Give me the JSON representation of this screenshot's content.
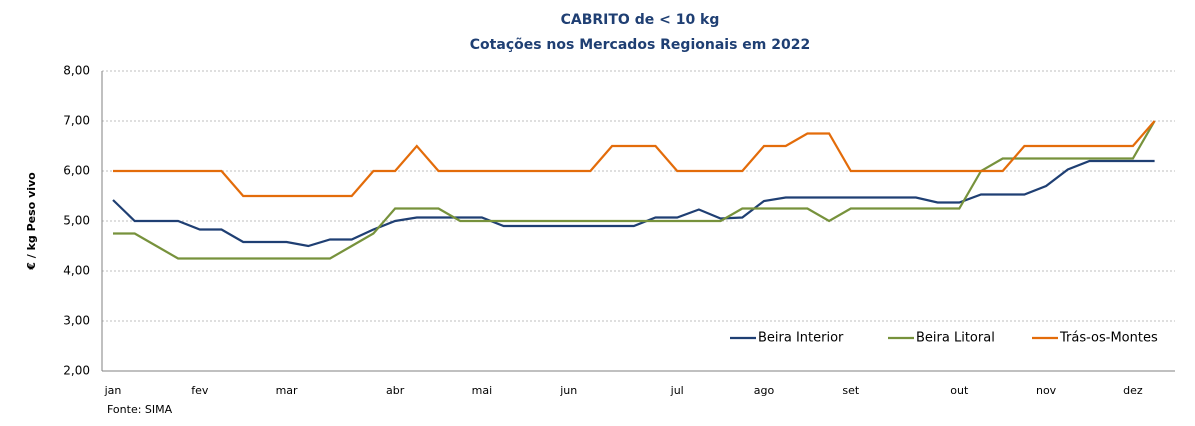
{
  "chart_data": {
    "type": "line",
    "title": "CABRITO de < 10 kg",
    "subtitle": "Cotações nos Mercados Regionais em 2022",
    "y_label": "€ / kg Peso vivo",
    "source": "Fonte: SIMA",
    "categories": [
      "jan",
      null,
      null,
      null,
      "fev",
      null,
      null,
      null,
      "mar",
      null,
      null,
      null,
      null,
      "abr",
      null,
      null,
      null,
      "mai",
      null,
      null,
      null,
      "jun",
      null,
      null,
      null,
      null,
      "jul",
      null,
      null,
      null,
      "ago",
      null,
      null,
      null,
      "set",
      null,
      null,
      null,
      null,
      "out",
      null,
      null,
      null,
      "nov",
      null,
      null,
      null,
      "dez",
      null
    ],
    "series": [
      {
        "name": "Beira Interior",
        "color": "#1f3f73",
        "values": [
          5.42,
          5.0,
          5.0,
          5.0,
          4.83,
          4.83,
          4.58,
          4.58,
          4.58,
          4.5,
          4.63,
          4.63,
          4.83,
          5.0,
          5.07,
          5.07,
          5.07,
          5.07,
          4.9,
          4.9,
          4.9,
          4.9,
          4.9,
          4.9,
          4.9,
          5.07,
          5.07,
          5.23,
          5.05,
          5.07,
          5.4,
          5.47,
          5.47,
          5.47,
          5.47,
          5.47,
          5.47,
          5.47,
          5.37,
          5.37,
          5.53,
          5.53,
          5.53,
          5.7,
          6.03,
          6.2,
          6.2,
          6.2,
          6.2
        ]
      },
      {
        "name": "Beira Litoral",
        "color": "#77923c",
        "values": [
          4.75,
          4.75,
          4.5,
          4.25,
          4.25,
          4.25,
          4.25,
          4.25,
          4.25,
          4.25,
          4.25,
          4.5,
          4.75,
          5.25,
          5.25,
          5.25,
          5.0,
          5.0,
          5.0,
          5.0,
          5.0,
          5.0,
          5.0,
          5.0,
          5.0,
          5.0,
          5.0,
          5.0,
          5.0,
          5.25,
          5.25,
          5.25,
          5.25,
          5.0,
          5.25,
          5.25,
          5.25,
          5.25,
          5.25,
          5.25,
          6.0,
          6.25,
          6.25,
          6.25,
          6.25,
          6.25,
          6.25,
          6.25,
          7.0
        ]
      },
      {
        "name": "Trás-os-Montes",
        "color": "#e36c0a",
        "values": [
          6.0,
          6.0,
          6.0,
          6.0,
          6.0,
          6.0,
          5.5,
          5.5,
          5.5,
          5.5,
          5.5,
          5.5,
          6.0,
          6.0,
          6.5,
          6.0,
          6.0,
          6.0,
          6.0,
          6.0,
          6.0,
          6.0,
          6.0,
          6.5,
          6.5,
          6.5,
          6.0,
          6.0,
          6.0,
          6.0,
          6.5,
          6.5,
          6.75,
          6.75,
          6.0,
          6.0,
          6.0,
          6.0,
          6.0,
          6.0,
          6.0,
          6.0,
          6.5,
          6.5,
          6.5,
          6.5,
          6.5,
          6.5,
          7.0
        ]
      }
    ],
    "ylim": [
      2,
      8
    ],
    "yticks": [
      {
        "value": 2,
        "label": "2,00"
      },
      {
        "value": 3,
        "label": "3,00"
      },
      {
        "value": 4,
        "label": "4,00"
      },
      {
        "value": 5,
        "label": "5,00"
      },
      {
        "value": 6,
        "label": "6,00"
      },
      {
        "value": 7,
        "label": "7,00"
      },
      {
        "value": 8,
        "label": "8,00"
      }
    ],
    "grid": true,
    "legend": "bottom-right"
  }
}
